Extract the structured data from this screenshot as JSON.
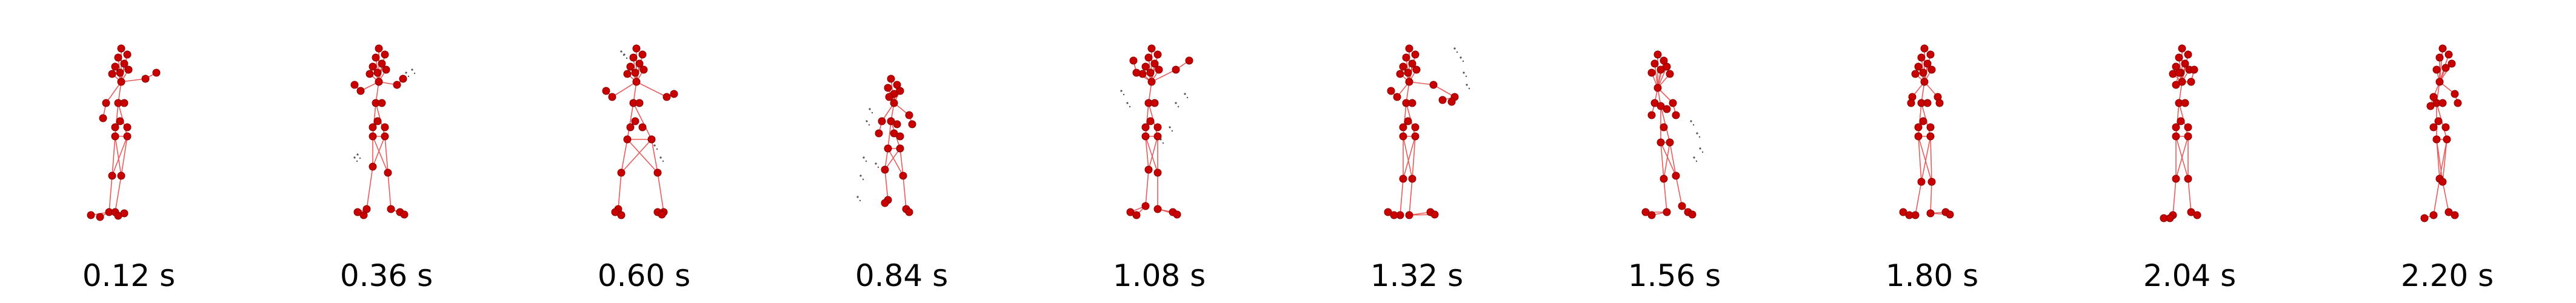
{
  "colors": {
    "joint": "#c80000",
    "bone": "#e85b5b",
    "trace": "#555555",
    "background": "#ffffff"
  },
  "frames": [
    {
      "time_label": "0.12 s",
      "pose": "arm-right-raised"
    },
    {
      "time_label": "0.36 s",
      "pose": "arms-crossed"
    },
    {
      "time_label": "0.60 s",
      "pose": "arms-wide-wide-stance"
    },
    {
      "time_label": "0.84 s",
      "pose": "crouch-cluster"
    },
    {
      "time_label": "1.08 s",
      "pose": "arms-up-v"
    },
    {
      "time_label": "1.32 s",
      "pose": "arm-reach-right"
    },
    {
      "time_label": "1.56 s",
      "pose": "leaning-back"
    },
    {
      "time_label": "1.80 s",
      "pose": "standing-compact"
    },
    {
      "time_label": "2.04 s",
      "pose": "standing-hands-up"
    },
    {
      "time_label": "2.20 s",
      "pose": "standing-tilted"
    }
  ]
}
